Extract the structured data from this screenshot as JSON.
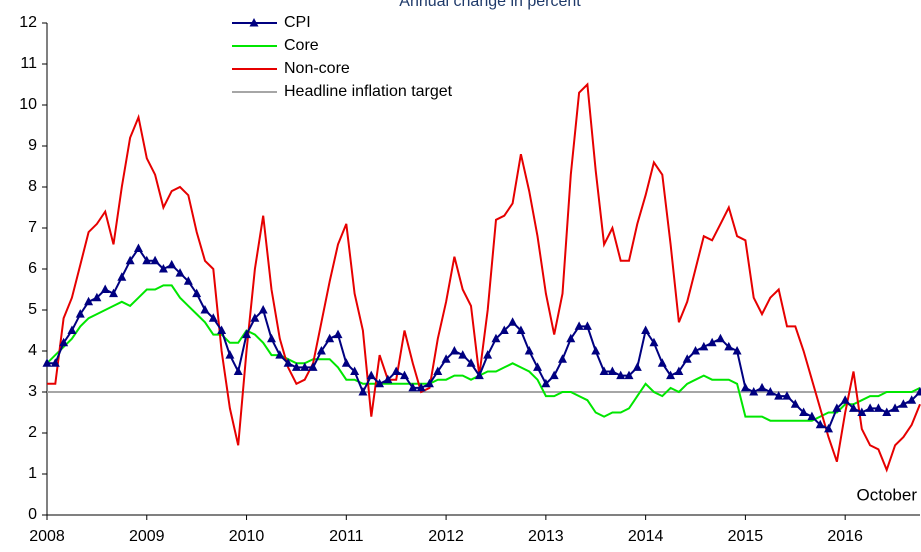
{
  "chart_data": {
    "type": "line",
    "title": "Annual change in percent",
    "annotation": "October",
    "categories": [
      "2008",
      null,
      null,
      null,
      null,
      null,
      null,
      null,
      null,
      null,
      null,
      null,
      "2009",
      null,
      null,
      null,
      null,
      null,
      null,
      null,
      null,
      null,
      null,
      null,
      "2010",
      null,
      null,
      null,
      null,
      null,
      null,
      null,
      null,
      null,
      null,
      null,
      "2011",
      null,
      null,
      null,
      null,
      null,
      null,
      null,
      null,
      null,
      null,
      null,
      "2012",
      null,
      null,
      null,
      null,
      null,
      null,
      null,
      null,
      null,
      null,
      null,
      "2013",
      null,
      null,
      null,
      null,
      null,
      null,
      null,
      null,
      null,
      null,
      null,
      "2014",
      null,
      null,
      null,
      null,
      null,
      null,
      null,
      null,
      null,
      null,
      null,
      "2015",
      null,
      null,
      null,
      null,
      null,
      null,
      null,
      null,
      null,
      null,
      null,
      "2016",
      null,
      null,
      null,
      null,
      null,
      null,
      null,
      null,
      null
    ],
    "series": [
      {
        "name": "CPI",
        "color": "#000080",
        "marker": "triangle",
        "values": [
          3.7,
          3.7,
          4.2,
          4.5,
          4.9,
          5.2,
          5.3,
          5.5,
          5.4,
          5.8,
          6.2,
          6.5,
          6.2,
          6.2,
          6.0,
          6.1,
          5.9,
          5.7,
          5.4,
          5.0,
          4.8,
          4.5,
          3.9,
          3.5,
          4.4,
          4.8,
          5.0,
          4.3,
          3.9,
          3.7,
          3.6,
          3.6,
          3.6,
          4.0,
          4.3,
          4.4,
          3.7,
          3.5,
          3.0,
          3.4,
          3.2,
          3.3,
          3.5,
          3.4,
          3.1,
          3.1,
          3.2,
          3.5,
          3.8,
          4.0,
          3.9,
          3.7,
          3.4,
          3.9,
          4.3,
          4.5,
          4.7,
          4.5,
          4.0,
          3.6,
          3.2,
          3.4,
          3.8,
          4.3,
          4.6,
          4.6,
          4.0,
          3.5,
          3.5,
          3.4,
          3.4,
          3.6,
          4.5,
          4.2,
          3.7,
          3.4,
          3.5,
          3.8,
          4.0,
          4.1,
          4.2,
          4.3,
          4.1,
          4.0,
          3.1,
          3.0,
          3.1,
          3.0,
          2.9,
          2.9,
          2.7,
          2.5,
          2.4,
          2.2,
          2.1,
          2.6,
          2.8,
          2.6,
          2.5,
          2.6,
          2.6,
          2.5,
          2.6,
          2.7,
          2.8,
          3.0
        ]
      },
      {
        "name": "Core",
        "color": "#00e600",
        "values": [
          3.7,
          3.9,
          4.1,
          4.3,
          4.6,
          4.8,
          4.9,
          5.0,
          5.1,
          5.2,
          5.1,
          5.3,
          5.5,
          5.5,
          5.6,
          5.6,
          5.3,
          5.1,
          4.9,
          4.7,
          4.4,
          4.4,
          4.2,
          4.2,
          4.5,
          4.4,
          4.2,
          3.9,
          3.9,
          3.8,
          3.7,
          3.7,
          3.8,
          3.8,
          3.8,
          3.6,
          3.3,
          3.3,
          3.2,
          3.2,
          3.2,
          3.2,
          3.2,
          3.2,
          3.2,
          3.2,
          3.2,
          3.3,
          3.3,
          3.4,
          3.4,
          3.3,
          3.4,
          3.5,
          3.5,
          3.6,
          3.7,
          3.6,
          3.5,
          3.3,
          2.9,
          2.9,
          3.0,
          3.0,
          2.9,
          2.8,
          2.5,
          2.4,
          2.5,
          2.5,
          2.6,
          2.9,
          3.2,
          3.0,
          2.9,
          3.1,
          3.0,
          3.2,
          3.3,
          3.4,
          3.3,
          3.3,
          3.3,
          3.2,
          2.4,
          2.4,
          2.4,
          2.3,
          2.3,
          2.3,
          2.3,
          2.3,
          2.3,
          2.4,
          2.5,
          2.5,
          2.7,
          2.7,
          2.8,
          2.9,
          2.9,
          3.0,
          3.0,
          3.0,
          3.0,
          3.1
        ]
      },
      {
        "name": "Non-core",
        "color": "#e60000",
        "values": [
          3.2,
          3.2,
          4.8,
          5.3,
          6.1,
          6.9,
          7.1,
          7.4,
          6.6,
          8.0,
          9.2,
          9.7,
          8.7,
          8.3,
          7.5,
          7.9,
          8.0,
          7.8,
          6.9,
          6.2,
          6.0,
          4.0,
          2.6,
          1.7,
          4.0,
          6.0,
          7.3,
          5.5,
          4.3,
          3.6,
          3.2,
          3.3,
          3.7,
          4.7,
          5.7,
          6.6,
          7.1,
          5.4,
          4.5,
          2.4,
          3.9,
          3.3,
          3.3,
          4.5,
          3.7,
          3.0,
          3.1,
          4.3,
          5.2,
          6.3,
          5.5,
          5.1,
          3.4,
          5.0,
          7.2,
          7.3,
          7.6,
          8.8,
          7.9,
          6.8,
          5.4,
          4.4,
          5.4,
          8.3,
          10.3,
          10.5,
          8.4,
          6.6,
          7.0,
          6.2,
          6.2,
          7.1,
          7.8,
          8.6,
          8.3,
          6.6,
          4.7,
          5.2,
          6.0,
          6.8,
          6.7,
          7.1,
          7.5,
          6.8,
          6.7,
          5.3,
          4.9,
          5.3,
          5.5,
          4.6,
          4.6,
          4.0,
          3.3,
          2.6,
          1.9,
          1.3,
          2.5,
          3.5,
          2.1,
          1.7,
          1.6,
          1.1,
          1.7,
          1.9,
          2.2,
          2.7
        ]
      }
    ],
    "target_line": {
      "name": "Headline inflation target",
      "value": 3,
      "color": "#a6a6a6"
    },
    "ylim": [
      0,
      12
    ],
    "yticks": [
      0,
      1,
      2,
      3,
      4,
      5,
      6,
      7,
      8,
      9,
      10,
      11,
      12
    ],
    "grid": false,
    "legend": "top"
  }
}
